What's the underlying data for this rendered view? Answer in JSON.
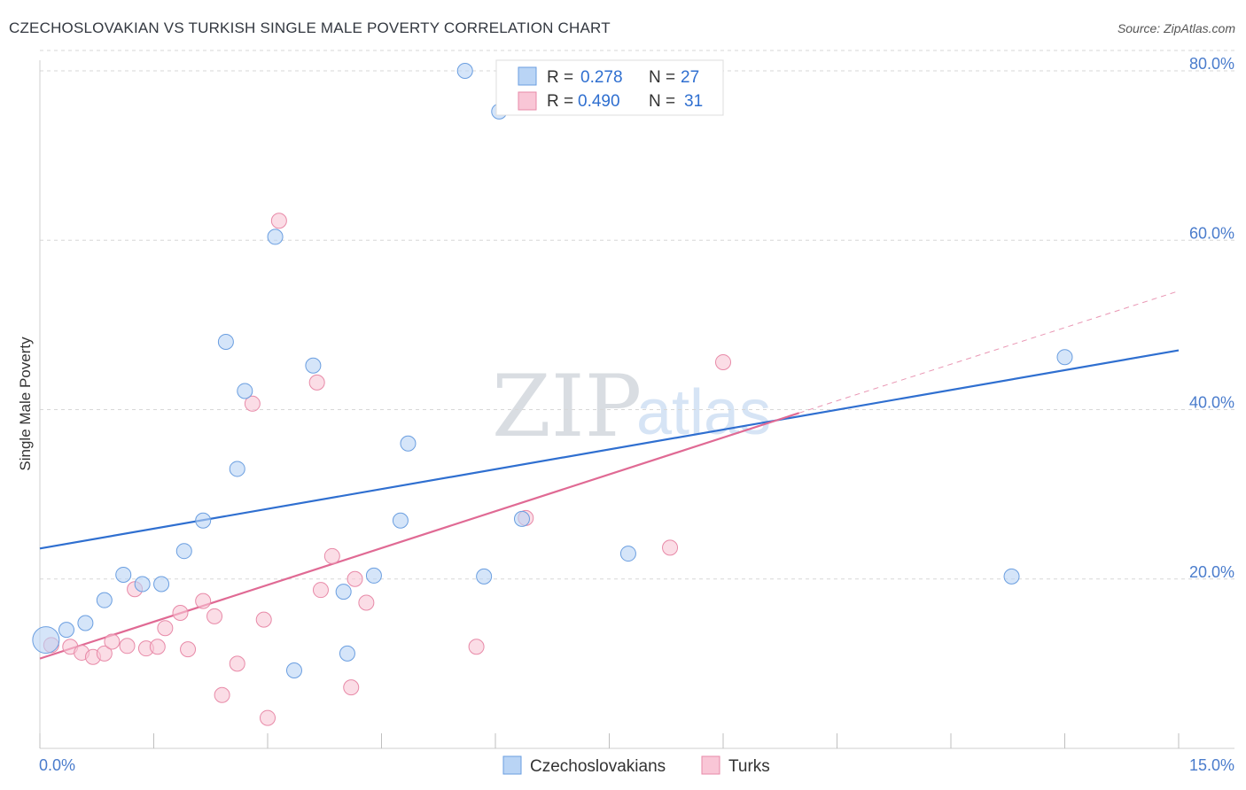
{
  "header": {
    "title": "CZECHOSLOVAKIAN VS TURKISH SINGLE MALE POVERTY CORRELATION CHART",
    "source": "Source: ZipAtlas.com"
  },
  "watermark": {
    "zip": "ZIP",
    "atlas": "atlas"
  },
  "chart_data": {
    "type": "scatter",
    "title": "CZECHOSLOVAKIAN VS TURKISH SINGLE MALE POVERTY CORRELATION CHART",
    "xlabel": "",
    "ylabel": "Single Male Poverty",
    "xlim": [
      0,
      15
    ],
    "ylim": [
      0,
      84
    ],
    "x_tick_labels": [
      "0.0%",
      "15.0%"
    ],
    "y_ticks": [
      20,
      40,
      60,
      80
    ],
    "y_tick_labels": [
      "20.0%",
      "40.0%",
      "60.0%",
      "80.0%"
    ],
    "grid": "horizontal dashed",
    "legend_position": "top-center",
    "colors": {
      "czech_fill": "#b9d4f5",
      "czech_stroke": "#6a9ee0",
      "czech_line": "#2f6fd0",
      "turk_fill": "#f9c6d6",
      "turk_stroke": "#e88aa8",
      "turk_line": "#e06a94",
      "tick_label": "#4a7ccc"
    },
    "series": [
      {
        "name": "Czechoslovakians",
        "R": "0.278",
        "N": "27",
        "trend": {
          "x0": 0,
          "y0": 23.6,
          "x1": 15,
          "y1": 47.0
        },
        "points": [
          {
            "x": 0.08,
            "y": 12.8,
            "big": true
          },
          {
            "x": 0.35,
            "y": 14.0
          },
          {
            "x": 0.6,
            "y": 14.8
          },
          {
            "x": 0.85,
            "y": 17.5
          },
          {
            "x": 1.1,
            "y": 20.5
          },
          {
            "x": 1.35,
            "y": 19.4
          },
          {
            "x": 1.6,
            "y": 19.4
          },
          {
            "x": 1.9,
            "y": 23.3
          },
          {
            "x": 2.15,
            "y": 26.9
          },
          {
            "x": 2.45,
            "y": 48.0
          },
          {
            "x": 2.7,
            "y": 42.2
          },
          {
            "x": 2.6,
            "y": 33.0
          },
          {
            "x": 3.1,
            "y": 60.4
          },
          {
            "x": 3.35,
            "y": 9.2
          },
          {
            "x": 3.6,
            "y": 45.2
          },
          {
            "x": 4.0,
            "y": 18.5
          },
          {
            "x": 4.05,
            "y": 11.2
          },
          {
            "x": 4.4,
            "y": 20.4
          },
          {
            "x": 4.75,
            "y": 26.9
          },
          {
            "x": 4.85,
            "y": 36.0
          },
          {
            "x": 5.6,
            "y": 80.0
          },
          {
            "x": 5.85,
            "y": 20.3
          },
          {
            "x": 6.05,
            "y": 75.2
          },
          {
            "x": 6.35,
            "y": 27.1
          },
          {
            "x": 7.75,
            "y": 23.0
          },
          {
            "x": 12.8,
            "y": 20.3
          },
          {
            "x": 13.5,
            "y": 46.2
          }
        ]
      },
      {
        "name": "Turks",
        "R": "0.490",
        "N": "31",
        "trend": {
          "x0": 0,
          "y0": 10.6,
          "x1": 10.0,
          "y1": 39.6
        },
        "trend_ext": {
          "x0": 10.0,
          "y0": 39.6,
          "x1": 15,
          "y1": 54.0
        },
        "points": [
          {
            "x": 0.15,
            "y": 12.2
          },
          {
            "x": 0.4,
            "y": 12.0
          },
          {
            "x": 0.55,
            "y": 11.3
          },
          {
            "x": 0.7,
            "y": 10.8
          },
          {
            "x": 0.85,
            "y": 11.2
          },
          {
            "x": 0.95,
            "y": 12.6
          },
          {
            "x": 1.15,
            "y": 12.1
          },
          {
            "x": 1.25,
            "y": 18.8
          },
          {
            "x": 1.4,
            "y": 11.8
          },
          {
            "x": 1.55,
            "y": 12.0
          },
          {
            "x": 1.65,
            "y": 14.2
          },
          {
            "x": 1.85,
            "y": 16.0
          },
          {
            "x": 1.95,
            "y": 11.7
          },
          {
            "x": 2.15,
            "y": 17.4
          },
          {
            "x": 2.3,
            "y": 15.6
          },
          {
            "x": 2.4,
            "y": 6.3
          },
          {
            "x": 2.6,
            "y": 10.0
          },
          {
            "x": 2.8,
            "y": 40.7
          },
          {
            "x": 2.95,
            "y": 15.2
          },
          {
            "x": 3.0,
            "y": 3.6
          },
          {
            "x": 3.15,
            "y": 62.3
          },
          {
            "x": 3.65,
            "y": 43.2
          },
          {
            "x": 3.7,
            "y": 18.7
          },
          {
            "x": 3.85,
            "y": 22.7
          },
          {
            "x": 4.1,
            "y": 7.2
          },
          {
            "x": 4.15,
            "y": 20.0
          },
          {
            "x": 4.3,
            "y": 17.2
          },
          {
            "x": 5.75,
            "y": 12.0
          },
          {
            "x": 6.4,
            "y": 27.2
          },
          {
            "x": 8.3,
            "y": 23.7
          },
          {
            "x": 9.0,
            "y": 45.6
          }
        ]
      }
    ]
  },
  "legend": {
    "r_label": "R =",
    "n_label": "N =",
    "items": [
      {
        "name": "Czechoslovakians",
        "r": "0.278",
        "n": "27"
      },
      {
        "name": "Turks",
        "r": "0.490",
        "n": "31"
      }
    ]
  }
}
